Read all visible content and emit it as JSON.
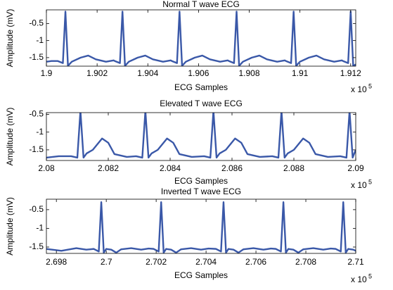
{
  "chart_data": [
    {
      "type": "line",
      "title": "Normal T wave ECG",
      "x_label": "ECG Samples",
      "y_label": "Amplitude (mV)",
      "x_scale_label": "x 10",
      "x_scale_exponent": "5",
      "xlim": [
        1.9,
        1.9122
      ],
      "ylim": [
        -1.75,
        -0.1
      ],
      "xticks": [
        1.9,
        1.902,
        1.904,
        1.906,
        1.908,
        1.91,
        1.912
      ],
      "yticks": [
        -1.5,
        -1,
        -0.5
      ],
      "series": [
        {
          "color": "#3a58a8",
          "x": [
            1.9,
            1.9002,
            1.90045,
            1.90065,
            1.90075,
            1.90085,
            1.901,
            1.90135,
            1.90165,
            1.90195,
            1.90235,
            1.90265,
            1.9027,
            1.9029,
            1.903,
            1.9031,
            1.90325,
            1.9036,
            1.9039,
            1.9042,
            1.9046,
            1.9049,
            1.90495,
            1.90515,
            1.90525,
            1.90535,
            1.9055,
            1.90585,
            1.90615,
            1.90645,
            1.90685,
            1.90715,
            1.9072,
            1.9074,
            1.9075,
            1.9076,
            1.90775,
            1.9081,
            1.9084,
            1.9087,
            1.9091,
            1.9094,
            1.90945,
            1.90965,
            1.90975,
            1.90985,
            1.91,
            1.91035,
            1.91065,
            1.91095,
            1.91135,
            1.91165,
            1.9117,
            1.9119,
            1.912,
            1.9121,
            1.9122
          ],
          "values": [
            -1.62,
            -1.6,
            -1.6,
            -1.66,
            -0.15,
            -1.74,
            -1.62,
            -1.5,
            -1.44,
            -1.55,
            -1.62,
            -1.58,
            -1.6,
            -1.66,
            -0.15,
            -1.74,
            -1.62,
            -1.5,
            -1.44,
            -1.55,
            -1.62,
            -1.58,
            -1.6,
            -1.66,
            -0.15,
            -1.74,
            -1.62,
            -1.5,
            -1.44,
            -1.55,
            -1.62,
            -1.58,
            -1.6,
            -1.66,
            -0.15,
            -1.74,
            -1.62,
            -1.5,
            -1.44,
            -1.55,
            -1.62,
            -1.58,
            -1.6,
            -1.66,
            -0.15,
            -1.74,
            -1.62,
            -1.5,
            -1.44,
            -1.55,
            -1.62,
            -1.58,
            -1.6,
            -1.66,
            -0.15,
            -1.74,
            -1.7
          ]
        }
      ]
    },
    {
      "type": "line",
      "title": "Elevated T wave ECG",
      "x_label": "ECG Samples",
      "y_label": "Amplitude (mV)",
      "x_scale_label": "x 10",
      "x_scale_exponent": "5",
      "xlim": [
        2.08,
        2.09
      ],
      "ylim": [
        -1.8,
        -0.45
      ],
      "xticks": [
        2.08,
        2.082,
        2.084,
        2.086,
        2.088,
        2.09
      ],
      "yticks": [
        -1.5,
        -1,
        -0.5
      ],
      "series": [
        {
          "color": "#3a58a8",
          "x": [
            2.08,
            2.0804,
            2.0808,
            2.081,
            2.0811,
            2.0812,
            2.0813,
            2.0815,
            2.0818,
            2.082,
            2.0822,
            2.0826,
            2.0829,
            2.0831,
            2.0832,
            2.0833,
            2.0834,
            2.0836,
            2.0839,
            2.0841,
            2.0843,
            2.0847,
            2.0851,
            2.0853,
            2.0854,
            2.0855,
            2.0856,
            2.0858,
            2.0861,
            2.0863,
            2.0865,
            2.0869,
            2.0873,
            2.0875,
            2.0876,
            2.0877,
            2.0878,
            2.088,
            2.0883,
            2.0885,
            2.0887,
            2.0891,
            2.0895,
            2.0897,
            2.0898,
            2.0899,
            2.09
          ],
          "values": [
            -1.72,
            -1.68,
            -1.68,
            -1.72,
            -0.4,
            -1.72,
            -1.6,
            -1.5,
            -1.18,
            -1.3,
            -1.62,
            -1.7,
            -1.68,
            -1.72,
            -0.4,
            -1.72,
            -1.6,
            -1.5,
            -1.18,
            -1.3,
            -1.62,
            -1.7,
            -1.68,
            -1.72,
            -0.4,
            -1.72,
            -1.6,
            -1.5,
            -1.18,
            -1.3,
            -1.62,
            -1.7,
            -1.68,
            -1.72,
            -0.4,
            -1.72,
            -1.6,
            -1.5,
            -1.18,
            -1.3,
            -1.62,
            -1.7,
            -1.68,
            -1.72,
            -0.4,
            -1.72,
            -1.5
          ]
        }
      ]
    },
    {
      "type": "line",
      "title": "Inverted T wave ECG",
      "x_label": "ECG Samples",
      "y_label": "Amplitude (mV)",
      "x_scale_label": "x 10",
      "x_scale_exponent": "5",
      "xlim": [
        2.6976,
        2.71
      ],
      "ylim": [
        -1.67,
        -0.22
      ],
      "xticks": [
        2.698,
        2.7,
        2.702,
        2.704,
        2.706,
        2.708,
        2.71
      ],
      "yticks": [
        -1.5,
        -1,
        -0.5
      ],
      "series": [
        {
          "color": "#3a58a8",
          "x": [
            2.6976,
            2.6982,
            2.6988,
            2.6992,
            2.6995,
            2.6997,
            2.6998,
            2.6999,
            2.7,
            2.7002,
            2.7004,
            2.7006,
            2.701,
            2.7014,
            2.7017,
            2.7019,
            2.7021,
            2.7022,
            2.7023,
            2.7024,
            2.7026,
            2.7028,
            2.703,
            2.7034,
            2.7038,
            2.7041,
            2.7044,
            2.7046,
            2.7047,
            2.7048,
            2.7049,
            2.7051,
            2.7053,
            2.7055,
            2.7059,
            2.7063,
            2.7066,
            2.7068,
            2.707,
            2.7071,
            2.7072,
            2.7073,
            2.7075,
            2.7077,
            2.7079,
            2.7083,
            2.7087,
            2.709,
            2.7092,
            2.7094,
            2.7095,
            2.7096,
            2.7097,
            2.7099,
            2.71
          ],
          "values": [
            -1.55,
            -1.6,
            -1.53,
            -1.57,
            -1.55,
            -1.62,
            -0.3,
            -1.65,
            -1.55,
            -1.57,
            -1.65,
            -1.56,
            -1.53,
            -1.57,
            -1.54,
            -1.55,
            -1.62,
            -0.3,
            -1.65,
            -1.55,
            -1.57,
            -1.65,
            -1.56,
            -1.53,
            -1.57,
            -1.54,
            -1.55,
            -1.62,
            -0.3,
            -1.65,
            -1.55,
            -1.57,
            -1.65,
            -1.56,
            -1.53,
            -1.57,
            -1.54,
            -1.55,
            -1.62,
            -0.3,
            -1.65,
            -1.55,
            -1.57,
            -1.65,
            -1.56,
            -1.53,
            -1.57,
            -1.54,
            -1.55,
            -1.62,
            -0.3,
            -1.65,
            -1.55,
            -1.57,
            -1.6
          ]
        }
      ]
    }
  ]
}
